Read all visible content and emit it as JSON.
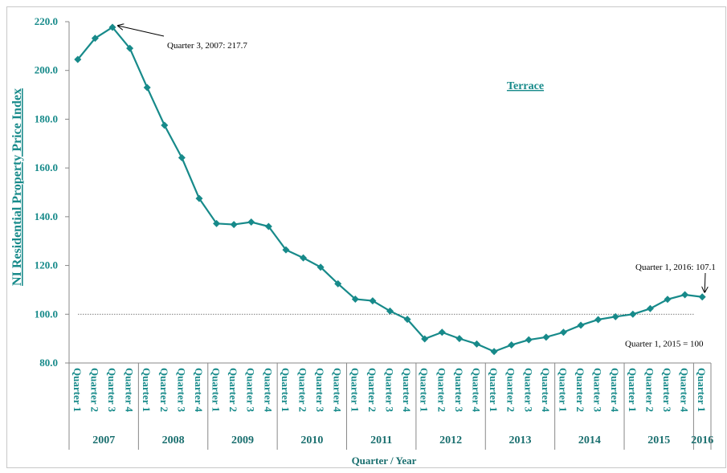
{
  "chart_data": {
    "type": "line",
    "series_name": "Terrace",
    "y_axis_label": "NI Residential Property Price Index",
    "x_axis_label": "Quarter / Year",
    "color": "#178a8a",
    "ylim": [
      80,
      220
    ],
    "yticks": [
      {
        "value": 80,
        "label": "80.0"
      },
      {
        "value": 100,
        "label": "100.0"
      },
      {
        "value": 120,
        "label": "120.0"
      },
      {
        "value": 140,
        "label": "140.0"
      },
      {
        "value": 160,
        "label": "160.0"
      },
      {
        "value": 180,
        "label": "180.0"
      },
      {
        "value": 200,
        "label": "200.0"
      },
      {
        "value": 220,
        "label": "220.0"
      }
    ],
    "reference_line": 100,
    "reference_label": "Quarter 1, 2015 = 100",
    "annotations": [
      "Quarter 3, 2007: 217.7",
      "Quarter 1, 2016: 107.1"
    ],
    "year_groups": [
      {
        "label": "2007",
        "quarters": [
          "Quarter 1",
          "Quarter 2",
          "Quarter 3",
          "Quarter 4"
        ]
      },
      {
        "label": "2008",
        "quarters": [
          "Quarter 1",
          "Quarter 2",
          "Quarter 3",
          "Quarter 4"
        ]
      },
      {
        "label": "2009",
        "quarters": [
          "Quarter 1",
          "Quarter 2",
          "Quarter 3",
          "Quarter 4"
        ]
      },
      {
        "label": "2010",
        "quarters": [
          "Quarter 1",
          "Quarter 2",
          "Quarter 3",
          "Quarter 4"
        ]
      },
      {
        "label": "2011",
        "quarters": [
          "Quarter 1",
          "Quarter 2",
          "Quarter 3",
          "Quarter 4"
        ]
      },
      {
        "label": "2012",
        "quarters": [
          "Quarter 1",
          "Quarter 2",
          "Quarter 3",
          "Quarter 4"
        ]
      },
      {
        "label": "2013",
        "quarters": [
          "Quarter 1",
          "Quarter 2",
          "Quarter 3",
          "Quarter 4"
        ]
      },
      {
        "label": "2014",
        "quarters": [
          "Quarter 1",
          "Quarter 2",
          "Quarter 3",
          "Quarter 4"
        ]
      },
      {
        "label": "2015",
        "quarters": [
          "Quarter 1",
          "Quarter 2",
          "Quarter 3",
          "Quarter 4"
        ]
      },
      {
        "label": "2016",
        "quarters": [
          "Quarter 1"
        ]
      }
    ],
    "values": [
      204.5,
      213.2,
      217.7,
      209.1,
      193.0,
      177.5,
      164.2,
      147.5,
      137.2,
      136.8,
      137.8,
      136.0,
      126.4,
      123.1,
      119.3,
      112.5,
      106.2,
      105.5,
      101.3,
      97.9,
      89.9,
      92.6,
      90.0,
      87.8,
      84.7,
      87.4,
      89.5,
      90.6,
      92.6,
      95.5,
      97.8,
      99.0,
      100.0,
      102.3,
      106.1,
      108.0,
      107.1
    ]
  }
}
